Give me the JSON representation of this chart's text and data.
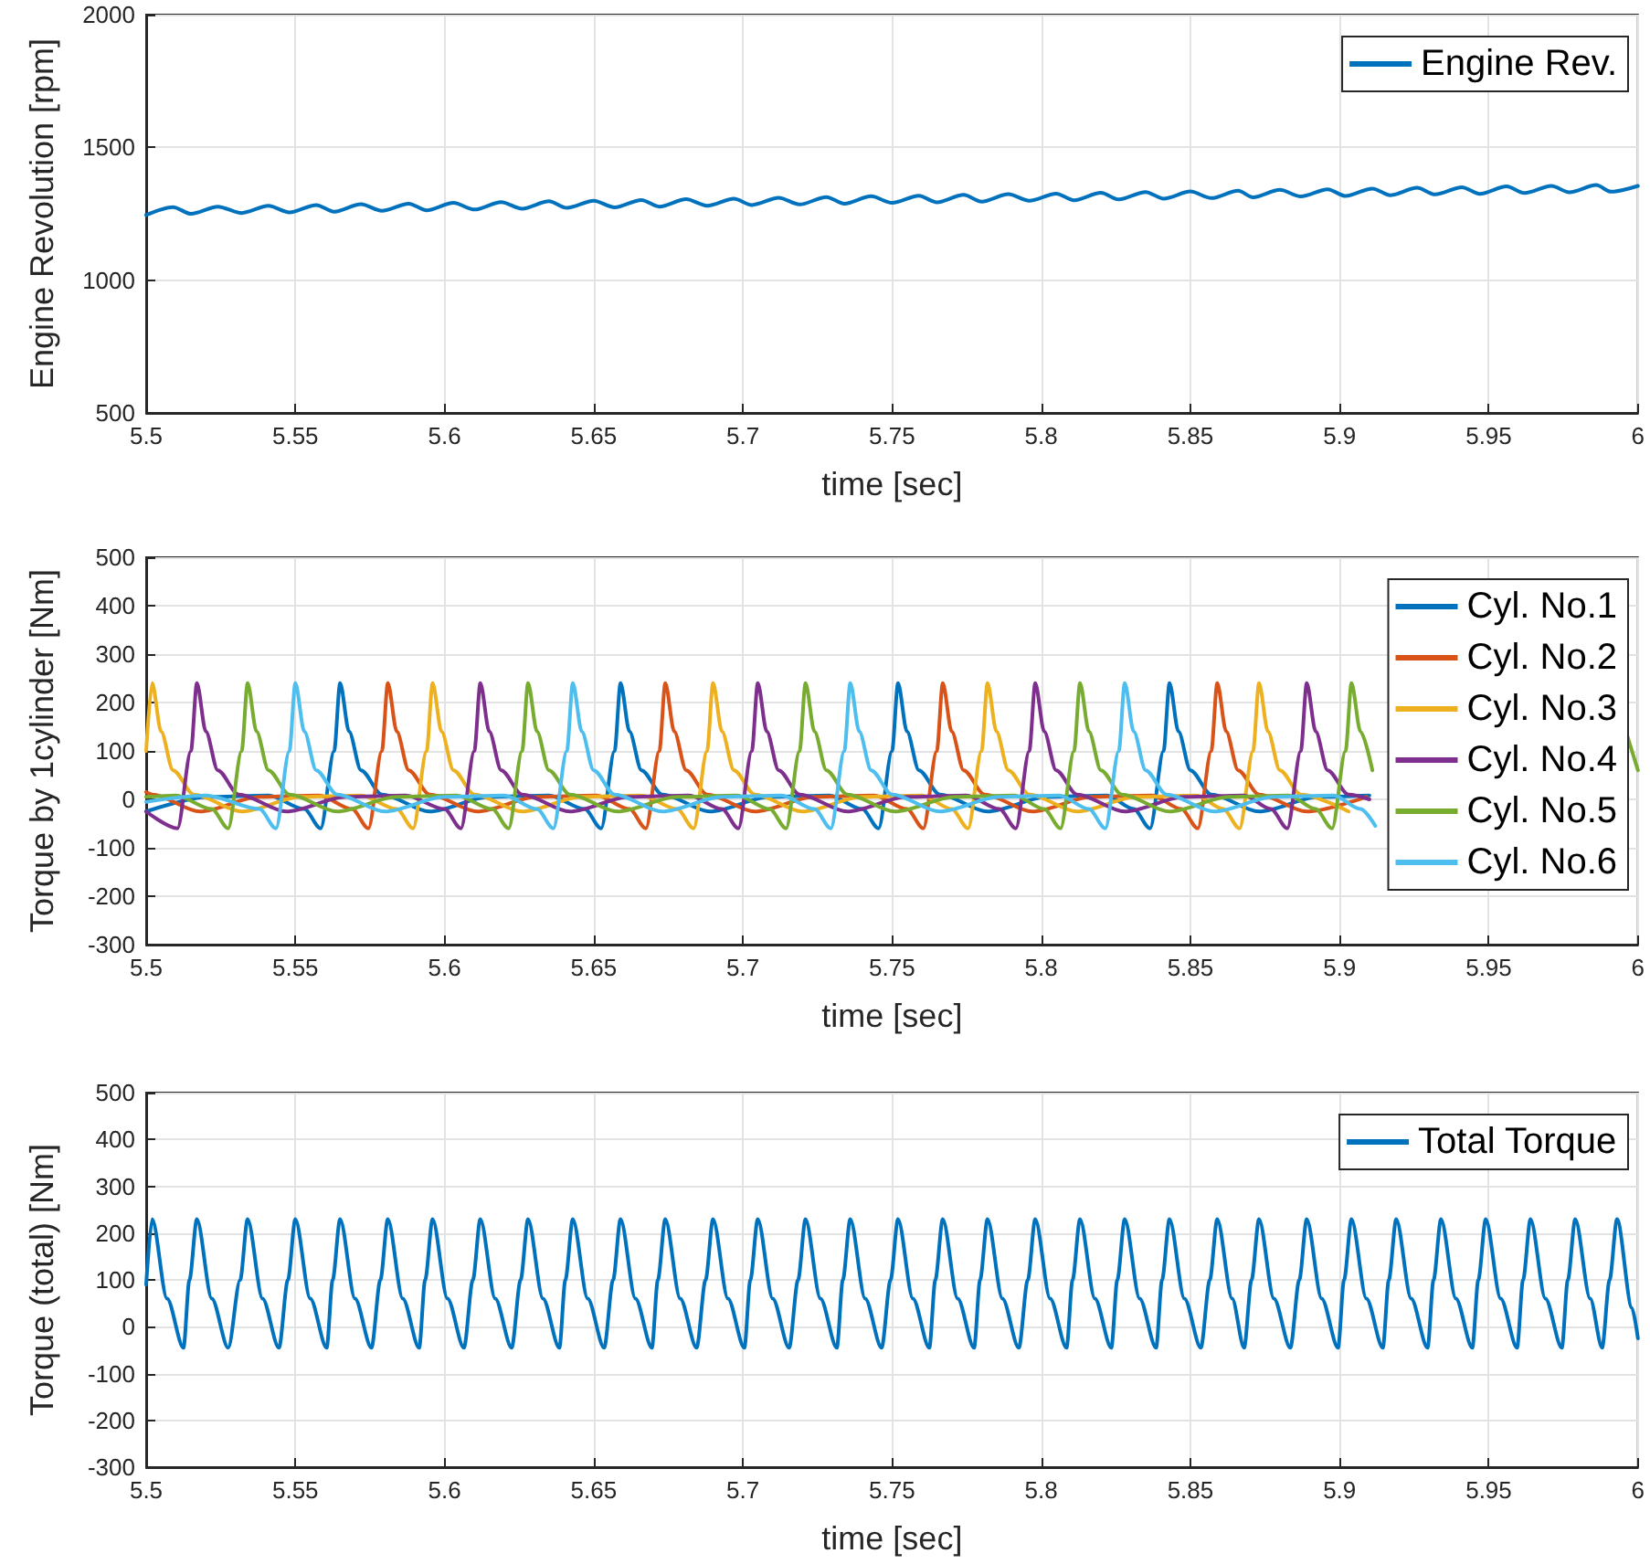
{
  "chart_data": [
    {
      "type": "line",
      "xlabel": "time [sec]",
      "ylabel": "Engine Revolution [rpm]",
      "xlim": [
        5.5,
        6
      ],
      "xticks": [
        5.5,
        5.55,
        5.6,
        5.65,
        5.7,
        5.75,
        5.8,
        5.85,
        5.9,
        5.95,
        6
      ],
      "ylim": [
        500,
        2000
      ],
      "yticks": [
        500,
        1000,
        1500,
        2000
      ],
      "grid": true,
      "legend": "top right",
      "marker": "none",
      "series": [
        {
          "name": "Engine Rev.",
          "color": "#0072bd",
          "x": [
            5.5,
            5.509,
            5.515,
            5.524,
            5.532,
            5.541,
            5.548,
            5.557,
            5.563,
            5.572,
            5.579,
            5.588,
            5.594,
            5.603,
            5.61,
            5.619,
            5.626,
            5.635,
            5.641,
            5.65,
            5.657,
            5.666,
            5.672,
            5.681,
            5.688,
            5.697,
            5.703,
            5.712,
            5.719,
            5.728,
            5.734,
            5.743,
            5.75,
            5.759,
            5.765,
            5.774,
            5.78,
            5.789,
            5.796,
            5.805,
            5.811,
            5.82,
            5.826,
            5.835,
            5.841,
            5.85,
            5.857,
            5.866,
            5.871,
            5.88,
            5.887,
            5.896,
            5.902,
            5.911,
            5.917,
            5.926,
            5.932,
            5.941,
            5.947,
            5.956,
            5.962,
            5.971,
            5.977,
            5.986,
            5.991,
            6.0
          ],
          "values": [
            1245,
            1275,
            1250,
            1277,
            1253,
            1280,
            1255,
            1283,
            1258,
            1286,
            1261,
            1288,
            1263,
            1291,
            1266,
            1294,
            1269,
            1297,
            1272,
            1299,
            1274,
            1302,
            1277,
            1305,
            1280,
            1307,
            1283,
            1310,
            1285,
            1313,
            1288,
            1316,
            1291,
            1318,
            1293,
            1321,
            1296,
            1324,
            1299,
            1326,
            1301,
            1329,
            1304,
            1332,
            1307,
            1334,
            1309,
            1337,
            1312,
            1340,
            1315,
            1342,
            1317,
            1345,
            1320,
            1348,
            1323,
            1350,
            1325,
            1353,
            1328,
            1355,
            1331,
            1358,
            1333,
            1355
          ]
        }
      ]
    },
    {
      "type": "line",
      "xlabel": "time [sec]",
      "ylabel": "Torque by 1cylinder [Nm]",
      "xlim": [
        5.5,
        6
      ],
      "xticks": [
        5.5,
        5.55,
        5.6,
        5.65,
        5.7,
        5.75,
        5.8,
        5.85,
        5.9,
        5.95,
        6
      ],
      "ylim": [
        -300,
        500
      ],
      "yticks": [
        -300,
        -200,
        -100,
        0,
        100,
        200,
        300,
        400,
        500
      ],
      "grid": true,
      "legend": "top right",
      "marker": "none",
      "series": [
        {
          "name": "Cyl. No.1",
          "color": "#0072bd",
          "x": [
            5.5,
            5.521,
            5.541,
            5.553,
            5.5585,
            5.563,
            5.565,
            5.568,
            5.572,
            5.579,
            5.595,
            5.615,
            5.635,
            5.647,
            5.6525,
            5.657,
            5.659,
            5.662,
            5.666,
            5.673,
            5.689,
            5.709,
            5.729,
            5.74,
            5.7455,
            5.75,
            5.752,
            5.755,
            5.759,
            5.766,
            5.782,
            5.802,
            5.822,
            5.831,
            5.8365,
            5.841,
            5.843,
            5.846,
            5.85,
            5.857,
            5.873,
            5.893,
            5.91
          ],
          "values": [
            -25,
            5,
            8,
            -20,
            -60,
            100,
            240,
            140,
            60,
            10,
            -25,
            5,
            8,
            -20,
            -60,
            100,
            240,
            140,
            60,
            10,
            -25,
            5,
            8,
            -20,
            -60,
            100,
            240,
            140,
            60,
            10,
            -25,
            5,
            8,
            -20,
            -60,
            100,
            240,
            140,
            60,
            10,
            -25,
            5,
            8
          ]
        },
        {
          "name": "Cyl. No.2",
          "color": "#d95319",
          "x": [
            5.5,
            5.502,
            5.518,
            5.538,
            5.558,
            5.569,
            5.5745,
            5.579,
            5.581,
            5.584,
            5.588,
            5.595,
            5.611,
            5.631,
            5.651,
            5.662,
            5.6675,
            5.672,
            5.674,
            5.677,
            5.681,
            5.688,
            5.704,
            5.724,
            5.744,
            5.755,
            5.7605,
            5.765,
            5.767,
            5.77,
            5.774,
            5.781,
            5.797,
            5.817,
            5.837,
            5.847,
            5.8525,
            5.857,
            5.859,
            5.862,
            5.866,
            5.873,
            5.889,
            5.909
          ],
          "values": [
            15,
            10,
            -25,
            5,
            8,
            -20,
            -60,
            100,
            240,
            140,
            60,
            10,
            -25,
            5,
            8,
            -20,
            -60,
            100,
            240,
            140,
            60,
            10,
            -25,
            5,
            8,
            -20,
            -60,
            100,
            240,
            140,
            60,
            10,
            -25,
            5,
            8,
            -20,
            -60,
            100,
            240,
            140,
            60,
            10,
            -25,
            5
          ]
        },
        {
          "name": "Cyl. No.3",
          "color": "#edb120",
          "x": [
            5.5,
            5.502,
            5.505,
            5.509,
            5.516,
            5.532,
            5.552,
            5.572,
            5.584,
            5.5895,
            5.594,
            5.596,
            5.599,
            5.603,
            5.61,
            5.626,
            5.646,
            5.666,
            5.678,
            5.6835,
            5.688,
            5.69,
            5.693,
            5.697,
            5.704,
            5.72,
            5.74,
            5.76,
            5.77,
            5.7755,
            5.78,
            5.782,
            5.785,
            5.789,
            5.796,
            5.812,
            5.832,
            5.852,
            5.861,
            5.8665,
            5.871,
            5.873,
            5.876,
            5.88,
            5.887,
            5.903
          ],
          "values": [
            100,
            240,
            140,
            60,
            10,
            -25,
            5,
            8,
            -20,
            -60,
            100,
            240,
            140,
            60,
            10,
            -25,
            5,
            8,
            -20,
            -60,
            100,
            240,
            140,
            60,
            10,
            -25,
            5,
            8,
            -20,
            -60,
            100,
            240,
            140,
            60,
            10,
            -25,
            5,
            8,
            -20,
            -60,
            100,
            240,
            140,
            60,
            10,
            -25
          ]
        },
        {
          "name": "Cyl. No.4",
          "color": "#7e2f8e",
          "x": [
            5.5,
            5.5105,
            5.515,
            5.517,
            5.52,
            5.524,
            5.531,
            5.547,
            5.567,
            5.587,
            5.6,
            5.6055,
            5.61,
            5.612,
            5.615,
            5.619,
            5.626,
            5.642,
            5.662,
            5.682,
            5.693,
            5.6985,
            5.703,
            5.705,
            5.708,
            5.712,
            5.719,
            5.735,
            5.755,
            5.775,
            5.786,
            5.7915,
            5.796,
            5.798,
            5.801,
            5.805,
            5.812,
            5.828,
            5.848,
            5.868,
            5.877,
            5.8825,
            5.887,
            5.889,
            5.892,
            5.896,
            5.903,
            5.91
          ],
          "values": [
            -25,
            -60,
            100,
            240,
            140,
            60,
            10,
            -25,
            5,
            8,
            -20,
            -60,
            100,
            240,
            140,
            60,
            10,
            -25,
            5,
            8,
            -20,
            -60,
            100,
            240,
            140,
            60,
            10,
            -25,
            5,
            8,
            -20,
            -60,
            100,
            240,
            140,
            60,
            10,
            -25,
            5,
            8,
            -20,
            -60,
            100,
            240,
            140,
            60,
            10,
            0
          ]
        },
        {
          "name": "Cyl. No.5",
          "color": "#77ac30",
          "x": [
            5.5,
            5.51,
            5.522,
            5.5275,
            5.532,
            5.534,
            5.537,
            5.541,
            5.548,
            5.564,
            5.584,
            5.604,
            5.616,
            5.6215,
            5.626,
            5.628,
            5.631,
            5.635,
            5.642,
            5.658,
            5.678,
            5.698,
            5.709,
            5.7145,
            5.719,
            5.721,
            5.724,
            5.728,
            5.735,
            5.751,
            5.771,
            5.791,
            5.801,
            5.8065,
            5.811,
            5.813,
            5.816,
            5.82,
            5.827,
            5.843,
            5.863,
            5.883,
            5.892,
            5.8975,
            5.902,
            5.904,
            5.907,
            5.911,
            5.95,
            5.996,
            6.0
          ],
          "values": [
            5,
            8,
            -20,
            -60,
            100,
            240,
            140,
            60,
            10,
            -25,
            5,
            8,
            -20,
            -60,
            100,
            240,
            140,
            60,
            10,
            -25,
            5,
            8,
            -20,
            -60,
            100,
            240,
            140,
            60,
            10,
            -25,
            5,
            8,
            -20,
            -60,
            100,
            240,
            140,
            60,
            10,
            -25,
            5,
            8,
            -20,
            -60,
            100,
            240,
            140,
            60,
            null,
            140,
            60
          ]
        },
        {
          "name": "Cyl. No.6",
          "color": "#4dbeee",
          "x": [
            5.5,
            5.52,
            5.538,
            5.5435,
            5.548,
            5.55,
            5.553,
            5.557,
            5.564,
            5.58,
            5.6,
            5.62,
            5.631,
            5.6365,
            5.641,
            5.643,
            5.646,
            5.65,
            5.657,
            5.673,
            5.693,
            5.713,
            5.724,
            5.7295,
            5.734,
            5.736,
            5.739,
            5.743,
            5.75,
            5.766,
            5.786,
            5.806,
            5.816,
            5.8215,
            5.826,
            5.828,
            5.831,
            5.835,
            5.842,
            5.858,
            5.878,
            5.898,
            5.907,
            5.912
          ],
          "values": [
            -5,
            8,
            -20,
            -60,
            100,
            240,
            140,
            60,
            10,
            -25,
            5,
            8,
            -20,
            -60,
            100,
            240,
            140,
            60,
            10,
            -25,
            5,
            8,
            -20,
            -60,
            100,
            240,
            140,
            60,
            10,
            -25,
            5,
            8,
            -20,
            -60,
            100,
            240,
            140,
            60,
            10,
            -25,
            5,
            8,
            -20,
            -55
          ]
        }
      ]
    },
    {
      "type": "line",
      "xlabel": "time [sec]",
      "ylabel": "Torque (total) [Nm]",
      "xlim": [
        5.5,
        6
      ],
      "xticks": [
        5.5,
        5.55,
        5.6,
        5.65,
        5.7,
        5.75,
        5.8,
        5.85,
        5.9,
        5.95,
        6
      ],
      "ylim": [
        -300,
        500
      ],
      "yticks": [
        -300,
        -200,
        -100,
        0,
        100,
        200,
        300,
        400,
        500
      ],
      "grid": true,
      "legend": "top right",
      "marker": "none",
      "series": [
        {
          "name": "Total Torque",
          "color": "#0072bd",
          "x": [
            5.5,
            5.502,
            5.507,
            5.5125,
            5.5145,
            5.517,
            5.522,
            5.5275,
            5.5315,
            5.534,
            5.539,
            5.5445,
            5.5475,
            5.55,
            5.555,
            5.5605,
            5.5625,
            5.565,
            5.57,
            5.5755,
            5.5785,
            5.581,
            5.586,
            5.5915,
            5.5935,
            5.596,
            5.601,
            5.6065,
            5.6095,
            5.612,
            5.617,
            5.6225,
            5.6255,
            5.628,
            5.633,
            5.6385,
            5.6405,
            5.643,
            5.648,
            5.6535,
            5.6565,
            5.659,
            5.664,
            5.6695,
            5.6715,
            5.674,
            5.679,
            5.6845,
            5.6875,
            5.69,
            5.695,
            5.7005,
            5.7025,
            5.705,
            5.71,
            5.7155,
            5.7185,
            5.721,
            5.726,
            5.7315,
            5.7335,
            5.736,
            5.741,
            5.7465,
            5.7495,
            5.752,
            5.757,
            5.7625,
            5.7645,
            5.767,
            5.772,
            5.7775,
            5.7795,
            5.782,
            5.787,
            5.7925,
            5.7955,
            5.798,
            5.803,
            5.8085,
            5.8105,
            5.813,
            5.818,
            5.8235,
            5.8255,
            5.828,
            5.833,
            5.8385,
            5.8405,
            5.843,
            5.848,
            5.8535,
            5.8565,
            5.859,
            5.864,
            5.868,
            5.8705,
            5.873,
            5.878,
            5.8835,
            5.8865,
            5.889,
            5.894,
            5.8995,
            5.9015,
            5.904,
            5.909,
            5.9145,
            5.9165,
            5.919,
            5.924,
            5.9295,
            5.9315,
            5.934,
            5.939,
            5.9445,
            5.9465,
            5.949,
            5.954,
            5.9595,
            5.9615,
            5.964,
            5.969,
            5.9745,
            5.9765,
            5.979,
            5.984,
            5.988,
            5.9905,
            5.993,
            5.998,
            6.0
          ],
          "values": [
            90,
            230,
            60,
            -45,
            100,
            230,
            60,
            -45,
            100,
            230,
            60,
            -45,
            100,
            230,
            60,
            -45,
            100,
            230,
            60,
            -45,
            100,
            230,
            60,
            -45,
            100,
            230,
            60,
            -45,
            100,
            230,
            60,
            -45,
            100,
            230,
            60,
            -45,
            100,
            230,
            60,
            -45,
            100,
            230,
            60,
            -45,
            100,
            230,
            60,
            -45,
            100,
            230,
            60,
            -45,
            100,
            230,
            60,
            -45,
            100,
            230,
            60,
            -45,
            100,
            230,
            60,
            -45,
            100,
            230,
            60,
            -45,
            100,
            230,
            60,
            -45,
            100,
            230,
            60,
            -45,
            100,
            230,
            60,
            -45,
            100,
            230,
            60,
            -45,
            100,
            230,
            60,
            -45,
            100,
            230,
            60,
            -45,
            100,
            230,
            60,
            -45,
            100,
            230,
            60,
            -45,
            100,
            230,
            60,
            -45,
            100,
            230,
            60,
            -45,
            100,
            230,
            60,
            -45,
            100,
            230,
            60,
            -45,
            100,
            230,
            60,
            -45,
            100,
            230,
            60,
            -45,
            100,
            230,
            60,
            -45,
            100,
            230,
            40,
            -25
          ]
        }
      ]
    }
  ]
}
